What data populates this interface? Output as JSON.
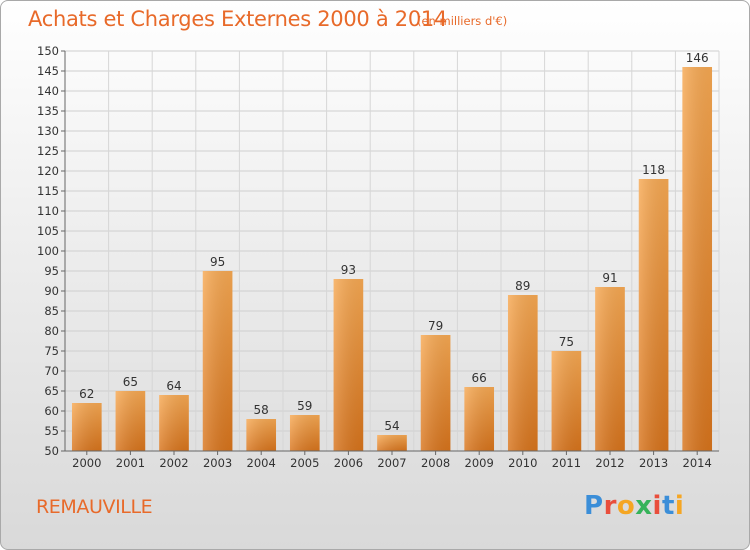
{
  "header": {
    "title": "Achats et Charges Externes 2000 à 2014",
    "unit": "(en milliers d'€)"
  },
  "footer": {
    "town": "REMAUVILLE",
    "logo": "Proxiti",
    "logo_colors": [
      "#3b8ed8",
      "#e94e3c",
      "#f5a623",
      "#36b35a",
      "#e94e3c",
      "#3b8ed8",
      "#f5a623"
    ]
  },
  "colors": {
    "bar_light": "#f6a34f",
    "bar_dark": "#d9761e",
    "text": "#e86a2a"
  },
  "chart_data": {
    "type": "bar",
    "categories": [
      "2000",
      "2001",
      "2002",
      "2003",
      "2004",
      "2005",
      "2006",
      "2007",
      "2008",
      "2009",
      "2010",
      "2011",
      "2012",
      "2013",
      "2014"
    ],
    "values": [
      62,
      65,
      64,
      95,
      58,
      59,
      93,
      54,
      79,
      66,
      89,
      75,
      91,
      118,
      146
    ],
    "ylim": [
      50,
      150
    ],
    "yticks": [
      50,
      55,
      60,
      65,
      70,
      75,
      80,
      85,
      90,
      95,
      100,
      105,
      110,
      115,
      120,
      125,
      130,
      135,
      140,
      145,
      150
    ],
    "grid": true
  }
}
